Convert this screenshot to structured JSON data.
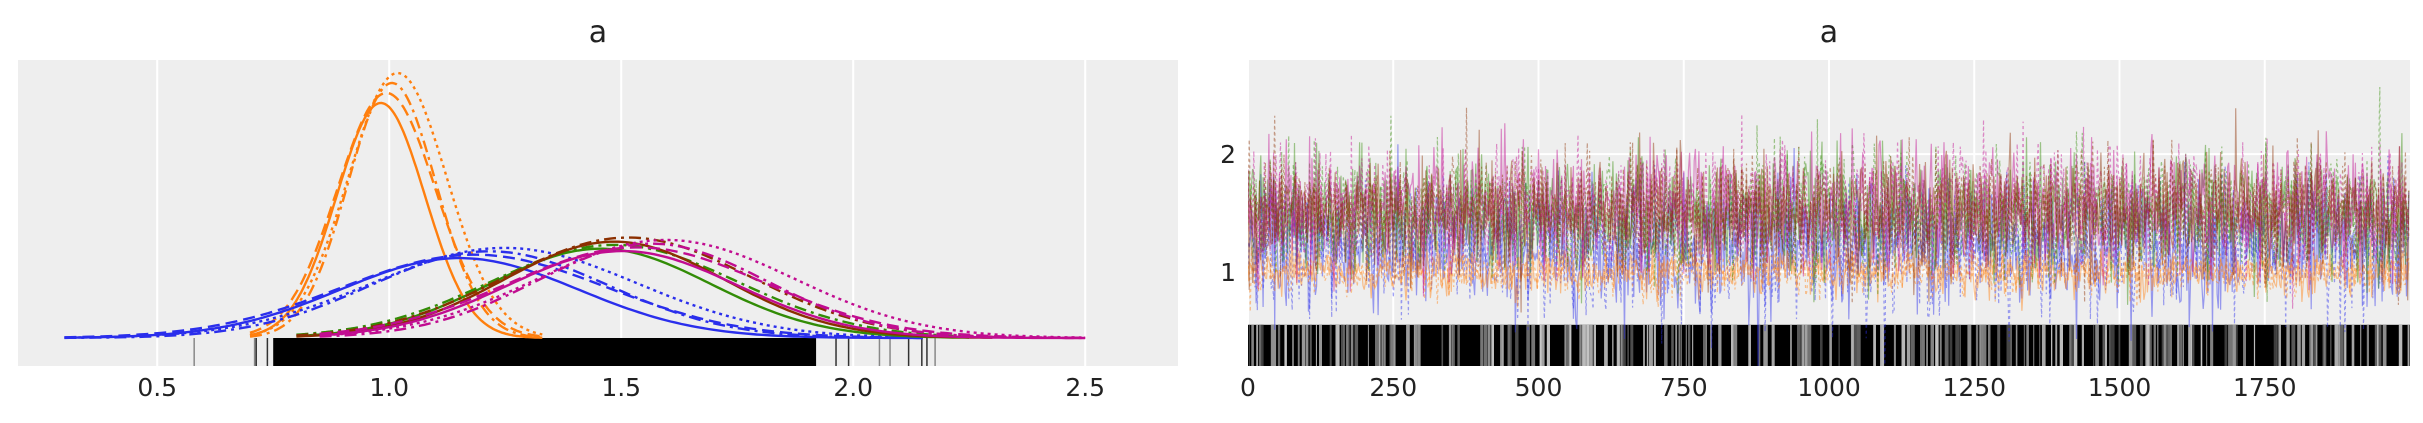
{
  "chart_data": [
    {
      "type": "density",
      "title": "a",
      "xlim": [
        0.2,
        2.7
      ],
      "xticks": [
        0.5,
        1.0,
        1.5,
        2.0,
        2.5
      ],
      "xtick_labels": [
        "0.5",
        "1.0",
        "1.5",
        "2.0",
        "2.5"
      ],
      "grid": true,
      "rug": true,
      "series": [
        {
          "color": "#ff7f0e",
          "linestyles": [
            "solid",
            "dashed",
            "dashdot",
            "dotted"
          ],
          "mean": 1.0,
          "sd": 0.1,
          "x_range": [
            0.7,
            1.33
          ],
          "peak": 1.0
        },
        {
          "color": "#2a2eec",
          "linestyles": [
            "solid",
            "dashed",
            "dashdot",
            "dotted"
          ],
          "mean": 1.2,
          "sd": 0.27,
          "x_range": [
            0.3,
            2.15
          ],
          "peak": 0.34
        },
        {
          "color": "#328c06",
          "linestyles": [
            "solid",
            "dashdot"
          ],
          "mean": 1.47,
          "sd": 0.25,
          "x_range": [
            0.8,
            2.25
          ],
          "peak": 0.38
        },
        {
          "color": "#8b2f00",
          "linestyles": [
            "solid",
            "dashdot"
          ],
          "mean": 1.5,
          "sd": 0.25,
          "x_range": [
            0.8,
            2.3
          ],
          "peak": 0.41
        },
        {
          "color": "#c10c90",
          "linestyles": [
            "solid",
            "dashed",
            "dashdot",
            "dotted"
          ],
          "mean": 1.55,
          "sd": 0.26,
          "x_range": [
            0.85,
            2.5
          ],
          "peak": 0.37
        }
      ]
    },
    {
      "type": "line",
      "title": "a",
      "xlim": [
        0,
        2000
      ],
      "ylim": [
        0.2,
        2.8
      ],
      "xticks": [
        0,
        250,
        500,
        750,
        1000,
        1250,
        1500,
        1750
      ],
      "xtick_labels": [
        "0",
        "250",
        "500",
        "750",
        "1000",
        "1250",
        "1500",
        "1750"
      ],
      "yticks": [
        1,
        2
      ],
      "ytick_labels": [
        "1",
        "2"
      ],
      "grid": true,
      "rank_bar": true,
      "n_draws": 2000,
      "series": [
        {
          "color": "#2a2eec",
          "mean": 1.2,
          "sd": 0.27
        },
        {
          "color": "#ff7f0e",
          "mean": 1.0,
          "sd": 0.1
        },
        {
          "color": "#328c06",
          "mean": 1.5,
          "sd": 0.25
        },
        {
          "color": "#c10c90",
          "mean": 1.55,
          "sd": 0.26
        },
        {
          "color": "#8b2f00",
          "mean": 1.5,
          "sd": 0.25
        }
      ]
    }
  ]
}
